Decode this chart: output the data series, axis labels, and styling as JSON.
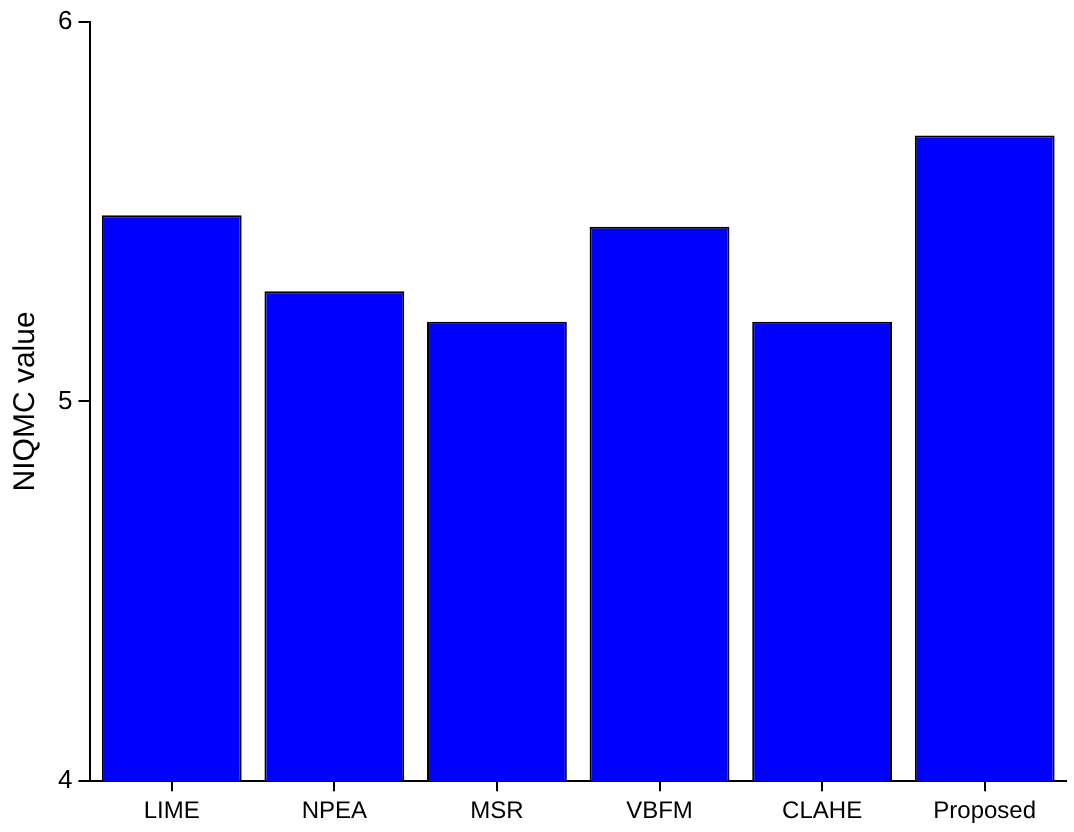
{
  "chart_data": {
    "type": "bar",
    "ylabel": "NIQMC value",
    "categories": [
      "LIME",
      "NPEA",
      "MSR",
      "VBFM",
      "CLAHE",
      "Proposed"
    ],
    "values": [
      5.49,
      5.29,
      5.21,
      5.46,
      5.21,
      5.7
    ],
    "color": "#0000ff",
    "ylim": [
      4,
      6
    ],
    "yticks": [
      4,
      5,
      6
    ],
    "grid": false
  }
}
